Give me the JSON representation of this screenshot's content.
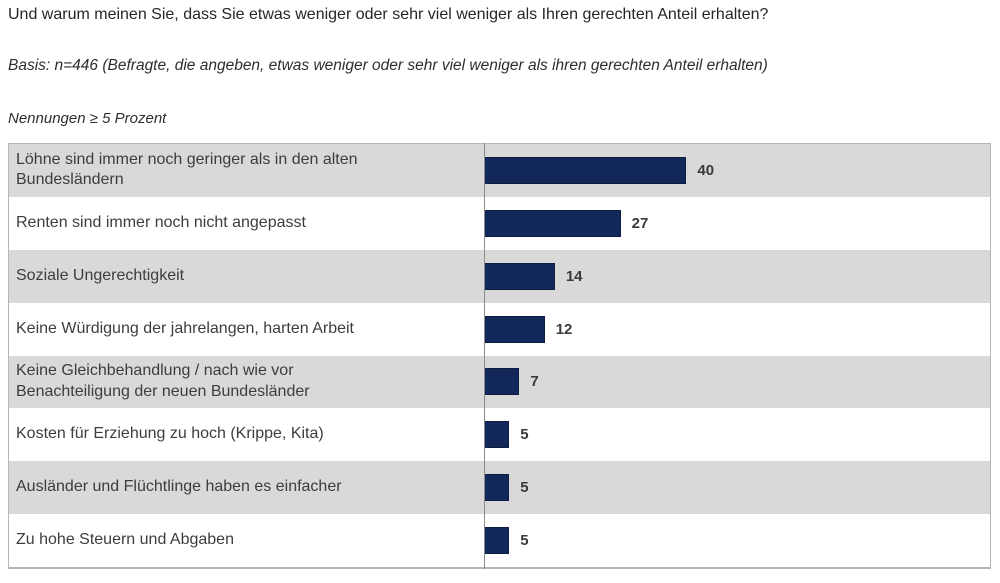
{
  "header": {
    "title": "Und warum meinen Sie, dass Sie etwas weniger oder sehr viel weniger als Ihren gerechten Anteil erhalten?",
    "basis": "Basis: n=446 (Befragte, die angeben, etwas weniger oder sehr viel weniger als ihren gerechten Anteil erhalten)",
    "filter_note": "Nennungen ≥ 5 Prozent"
  },
  "chart_data": {
    "type": "bar",
    "orientation": "horizontal",
    "title": "Und warum meinen Sie, dass Sie etwas weniger oder sehr viel weniger als Ihren gerechten Anteil erhalten?",
    "subtitle": "Nennungen ≥ 5 Prozent",
    "categories": [
      "Löhne sind immer noch geringer als in den alten\nBundesländern",
      "Renten sind immer noch nicht angepasst",
      "Soziale Ungerechtigkeit",
      "Keine Würdigung der jahrelangen, harten Arbeit",
      "Keine Gleichbehandlung / nach wie vor\nBenachteiligung der neuen Bundesländer",
      "Kosten für Erziehung zu hoch (Krippe, Kita)",
      "Ausländer und Flüchtlinge haben es einfacher",
      "Zu hohe Steuern und Abgaben"
    ],
    "values": [
      40,
      27,
      14,
      12,
      7,
      5,
      5,
      5
    ],
    "unit": "Prozent",
    "xlim": [
      0,
      100
    ],
    "value_labels_shown": true,
    "grid": false,
    "legend": "none",
    "colors": {
      "bar": "#13285a",
      "row_band_alt": "#d9d9d9",
      "row_band": "#ffffff",
      "axis_line": "#8c8c8c",
      "border": "#b5b5b5",
      "text": "#3d3d3d"
    }
  }
}
